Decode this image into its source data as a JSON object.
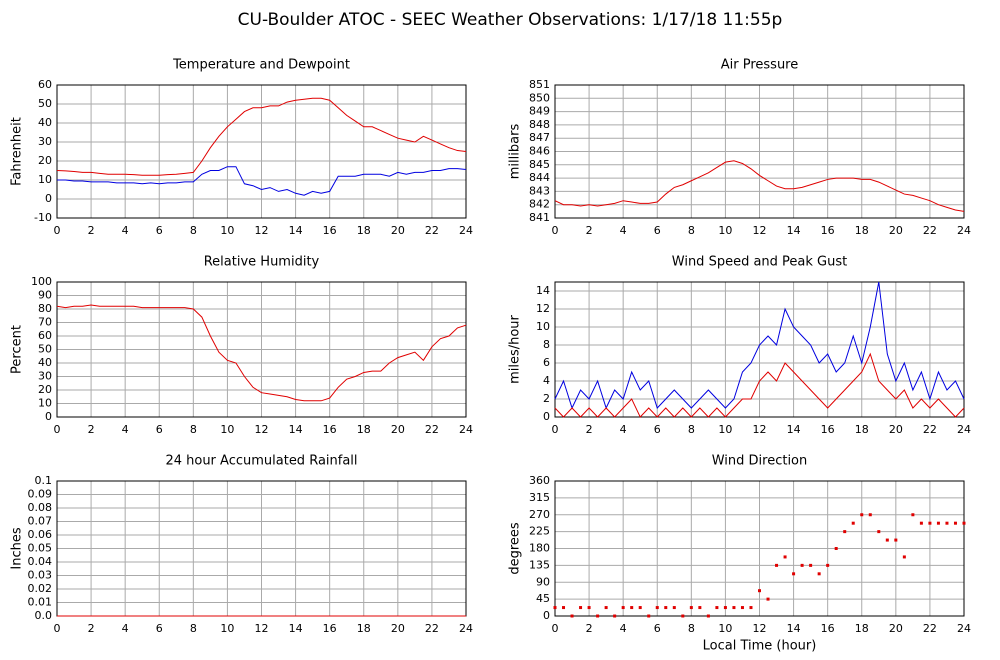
{
  "title": "CU-Boulder ATOC - SEEC Weather Observations: 1/17/18 11:55p",
  "chart_data": [
    {
      "type": "line",
      "title": "Temperature and Dewpoint",
      "ylabel": "Fahrenheit",
      "x": [
        0,
        0.5,
        1,
        1.5,
        2,
        2.5,
        3,
        3.5,
        4,
        4.5,
        5,
        5.5,
        6,
        6.5,
        7,
        7.5,
        8,
        8.5,
        9,
        9.5,
        10,
        10.5,
        11,
        11.5,
        12,
        12.5,
        13,
        13.5,
        14,
        14.5,
        15,
        15.5,
        16,
        16.5,
        17,
        17.5,
        18,
        18.5,
        19,
        19.5,
        20,
        20.5,
        21,
        21.5,
        22,
        22.5,
        23,
        23.5,
        24
      ],
      "series": [
        {
          "color": "#e00000",
          "values": [
            15,
            14.8,
            14.5,
            14,
            14,
            13.5,
            13,
            13,
            13,
            12.8,
            12.5,
            12.5,
            12.5,
            12.8,
            13,
            13.5,
            14,
            20,
            27,
            33,
            38,
            42,
            46,
            48,
            48,
            49,
            49,
            51,
            52,
            52.5,
            53,
            53,
            52,
            48,
            44,
            41,
            38,
            38,
            36,
            34,
            32,
            31,
            30,
            33,
            31,
            29,
            27,
            25.5,
            25
          ]
        },
        {
          "color": "#0000e0",
          "values": [
            10,
            10,
            9.5,
            9.5,
            9,
            9,
            9,
            8.5,
            8.5,
            8.5,
            8,
            8.5,
            8,
            8.5,
            8.5,
            9,
            9,
            13,
            15,
            15,
            17,
            17,
            8,
            7,
            5,
            6,
            4,
            5,
            3,
            2,
            4,
            3,
            4,
            12,
            12,
            12,
            13,
            13,
            13,
            12,
            14,
            13,
            14,
            14,
            15,
            15,
            16,
            16,
            15.5
          ]
        }
      ],
      "xlim": [
        0,
        24
      ],
      "xticks": [
        0,
        2,
        4,
        6,
        8,
        10,
        12,
        14,
        16,
        18,
        20,
        22,
        24
      ],
      "ylim": [
        -10,
        60
      ],
      "yticks": [
        -10,
        0,
        10,
        20,
        30,
        40,
        50,
        60
      ],
      "grid": true
    },
    {
      "type": "line",
      "title": "Air Pressure",
      "ylabel": "millibars",
      "x": [
        0,
        0.5,
        1,
        1.5,
        2,
        2.5,
        3,
        3.5,
        4,
        4.5,
        5,
        5.5,
        6,
        6.5,
        7,
        7.5,
        8,
        8.5,
        9,
        9.5,
        10,
        10.5,
        11,
        11.5,
        12,
        12.5,
        13,
        13.5,
        14,
        14.5,
        15,
        15.5,
        16,
        16.5,
        17,
        17.5,
        18,
        18.5,
        19,
        19.5,
        20,
        20.5,
        21,
        21.5,
        22,
        22.5,
        23,
        23.5,
        24
      ],
      "series": [
        {
          "color": "#e00000",
          "values": [
            842.3,
            842,
            842,
            841.9,
            842,
            841.9,
            842,
            842.1,
            842.3,
            842.2,
            842.1,
            842.1,
            842.2,
            842.8,
            843.3,
            843.5,
            843.8,
            844.1,
            844.4,
            844.8,
            845.2,
            845.3,
            845.1,
            844.7,
            844.2,
            843.8,
            843.4,
            843.2,
            843.2,
            843.3,
            843.5,
            843.7,
            843.9,
            844,
            844,
            844,
            843.9,
            843.9,
            843.7,
            843.4,
            843.1,
            842.8,
            842.7,
            842.5,
            842.3,
            842,
            841.8,
            841.6,
            841.5
          ]
        }
      ],
      "xlim": [
        0,
        24
      ],
      "xticks": [
        0,
        2,
        4,
        6,
        8,
        10,
        12,
        14,
        16,
        18,
        20,
        22,
        24
      ],
      "ylim": [
        841,
        851
      ],
      "yticks": [
        841,
        842,
        843,
        844,
        845,
        846,
        847,
        848,
        849,
        850,
        851
      ],
      "grid": true
    },
    {
      "type": "line",
      "title": "Relative Humidity",
      "ylabel": "Percent",
      "x": [
        0,
        0.5,
        1,
        1.5,
        2,
        2.5,
        3,
        3.5,
        4,
        4.5,
        5,
        5.5,
        6,
        6.5,
        7,
        7.5,
        8,
        8.5,
        9,
        9.5,
        10,
        10.5,
        11,
        11.5,
        12,
        12.5,
        13,
        13.5,
        14,
        14.5,
        15,
        15.5,
        16,
        16.5,
        17,
        17.5,
        18,
        18.5,
        19,
        19.5,
        20,
        20.5,
        21,
        21.5,
        22,
        22.5,
        23,
        23.5,
        24
      ],
      "series": [
        {
          "color": "#e00000",
          "values": [
            82,
            81,
            82,
            82,
            83,
            82,
            82,
            82,
            82,
            82,
            81,
            81,
            81,
            81,
            81,
            81,
            80,
            74,
            60,
            48,
            42,
            40,
            30,
            22,
            18,
            17,
            16,
            15,
            13,
            12,
            12,
            12,
            14,
            22,
            28,
            30,
            33,
            34,
            34,
            40,
            44,
            46,
            48,
            42,
            52,
            58,
            60,
            66,
            68
          ]
        }
      ],
      "xlim": [
        0,
        24
      ],
      "xticks": [
        0,
        2,
        4,
        6,
        8,
        10,
        12,
        14,
        16,
        18,
        20,
        22,
        24
      ],
      "ylim": [
        0,
        100
      ],
      "yticks": [
        0,
        10,
        20,
        30,
        40,
        50,
        60,
        70,
        80,
        90,
        100
      ],
      "grid": true
    },
    {
      "type": "line",
      "title": "Wind Speed and Peak Gust",
      "ylabel": "miles/hour",
      "x": [
        0,
        0.5,
        1,
        1.5,
        2,
        2.5,
        3,
        3.5,
        4,
        4.5,
        5,
        5.5,
        6,
        6.5,
        7,
        7.5,
        8,
        8.5,
        9,
        9.5,
        10,
        10.5,
        11,
        11.5,
        12,
        12.5,
        13,
        13.5,
        14,
        14.5,
        15,
        15.5,
        16,
        16.5,
        17,
        17.5,
        18,
        18.5,
        19,
        19.5,
        20,
        20.5,
        21,
        21.5,
        22,
        22.5,
        23,
        23.5,
        24
      ],
      "series": [
        {
          "color": "#0000e0",
          "values": [
            2,
            4,
            1,
            3,
            2,
            4,
            1,
            3,
            2,
            5,
            3,
            4,
            1,
            2,
            3,
            2,
            1,
            2,
            3,
            2,
            1,
            2,
            5,
            6,
            8,
            9,
            8,
            12,
            10,
            9,
            8,
            6,
            7,
            5,
            6,
            9,
            6,
            10,
            15,
            7,
            4,
            6,
            3,
            5,
            2,
            5,
            3,
            4,
            2
          ]
        },
        {
          "color": "#e00000",
          "values": [
            1,
            0,
            1,
            0,
            1,
            0,
            1,
            0,
            1,
            2,
            0,
            1,
            0,
            1,
            0,
            1,
            0,
            1,
            0,
            1,
            0,
            1,
            2,
            2,
            4,
            5,
            4,
            6,
            5,
            4,
            3,
            2,
            1,
            2,
            3,
            4,
            5,
            7,
            4,
            3,
            2,
            3,
            1,
            2,
            1,
            2,
            1,
            0,
            1
          ]
        }
      ],
      "xlim": [
        0,
        24
      ],
      "xticks": [
        0,
        2,
        4,
        6,
        8,
        10,
        12,
        14,
        16,
        18,
        20,
        22,
        24
      ],
      "ylim": [
        0,
        15
      ],
      "yticks": [
        0,
        2,
        4,
        6,
        8,
        10,
        12,
        14
      ],
      "grid": true
    },
    {
      "type": "line",
      "title": "24 hour Accumulated Rainfall",
      "ylabel": "Inches",
      "x": [
        0,
        24
      ],
      "series": [
        {
          "color": "#e00000",
          "values": [
            0,
            0
          ]
        }
      ],
      "xlim": [
        0,
        24
      ],
      "xticks": [
        0,
        2,
        4,
        6,
        8,
        10,
        12,
        14,
        16,
        18,
        20,
        22,
        24
      ],
      "ylim": [
        0,
        0.1
      ],
      "yticks": [
        {
          "value": 0,
          "label": "0.0"
        },
        0.01,
        0.02,
        0.03,
        0.04,
        0.05,
        0.06,
        0.07,
        0.08,
        0.09,
        0.1
      ],
      "grid": true
    },
    {
      "type": "scatter",
      "title": "Wind Direction",
      "ylabel": "degrees",
      "xlabel": "Local Time (hour)",
      "x": [
        0,
        0.5,
        1,
        1.5,
        2,
        2.5,
        3,
        3.5,
        4,
        4.5,
        5,
        5.5,
        6,
        6.5,
        7,
        7.5,
        8,
        8.5,
        9,
        9.5,
        10,
        10.5,
        11,
        11.5,
        12,
        12.5,
        13,
        13.5,
        14,
        14.5,
        15,
        15.5,
        16,
        16.5,
        17,
        17.5,
        18,
        18.5,
        19,
        19.5,
        20,
        20.5,
        21,
        21.5,
        22,
        22.5,
        23,
        23.5,
        24
      ],
      "series": [
        {
          "color": "#e00000",
          "values": [
            22.5,
            22.5,
            0,
            22.5,
            22.5,
            0,
            22.5,
            0,
            22.5,
            22.5,
            22.5,
            0,
            22.5,
            22.5,
            22.5,
            0,
            22.5,
            22.5,
            0,
            22.5,
            22.5,
            22.5,
            22.5,
            22.5,
            67.5,
            45,
            135,
            157.5,
            112.5,
            135,
            135,
            112.5,
            135,
            180,
            225,
            247.5,
            270,
            270,
            225,
            202.5,
            202.5,
            157.5,
            270,
            247.5,
            247.5,
            247.5,
            247.5,
            247.5,
            247.5
          ]
        }
      ],
      "xlim": [
        0,
        24
      ],
      "xticks": [
        0,
        2,
        4,
        6,
        8,
        10,
        12,
        14,
        16,
        18,
        20,
        22,
        24
      ],
      "ylim": [
        0,
        360
      ],
      "yticks": [
        0,
        45,
        90,
        135,
        180,
        225,
        270,
        315,
        360
      ],
      "grid": true
    }
  ]
}
